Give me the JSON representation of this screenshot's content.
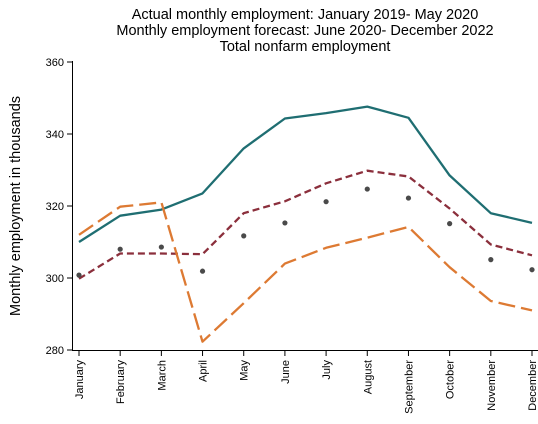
{
  "chart_data": {
    "type": "line",
    "title_lines": [
      "Actual monthly employment: January 2019- May 2020",
      "Monthly employment forecast: June 2020- December 2022",
      "Total nonfarm employment"
    ],
    "ylabel": "Monthly employment in thousands",
    "xlabel": "",
    "ylim": [
      280,
      360
    ],
    "yticks": [
      "280",
      "300",
      "320",
      "340",
      "360"
    ],
    "categories": [
      "January",
      "February",
      "March",
      "April",
      "May",
      "June",
      "July",
      "August",
      "September",
      "October",
      "November",
      "December"
    ],
    "grid": false,
    "legend": "none",
    "series": [
      {
        "style": "solid",
        "color": "#1f6e72",
        "values": [
          310,
          317.3,
          319,
          323.5,
          336,
          344.3,
          345.8,
          347.6,
          344.5,
          328.5,
          318,
          315.3
        ]
      },
      {
        "style": "short-dash",
        "color": "#8b2f3c",
        "values": [
          299.8,
          306.8,
          306.8,
          306.6,
          318,
          321.3,
          326.3,
          329.8,
          328.2,
          319.3,
          309.3,
          306.3
        ]
      },
      {
        "style": "long-dash",
        "color": "#dd7a33",
        "values": [
          312,
          319.8,
          321,
          282.3,
          293,
          304,
          308.4,
          311.2,
          314.2,
          303,
          293.6,
          291
        ]
      },
      {
        "style": "dots",
        "color": "#4a4a4a",
        "values": [
          300.8,
          308,
          308.6,
          301.9,
          311.7,
          315.3,
          321.2,
          324.7,
          322.2,
          315.1,
          305.1,
          302.3
        ]
      }
    ]
  }
}
